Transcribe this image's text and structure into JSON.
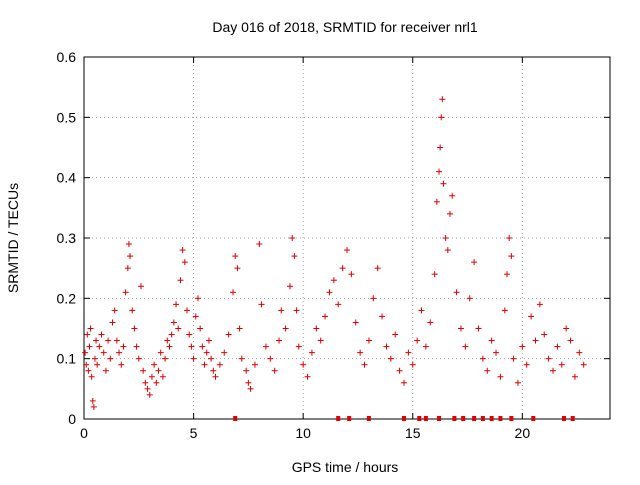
{
  "chart_data": {
    "type": "scatter",
    "title": "Day 016 of 2018, SRMTID for receiver nrl1",
    "xlabel": "GPS time / hours",
    "ylabel": "SRMTID / TECUs",
    "xlim": [
      0,
      24
    ],
    "ylim": [
      0,
      0.6
    ],
    "x_ticks": [
      "0",
      "5",
      "10",
      "15",
      "20"
    ],
    "y_ticks": [
      "0",
      "0.1",
      "0.2",
      "0.3",
      "0.4",
      "0.5",
      "0.6"
    ],
    "x_tick_values": [
      0,
      5,
      10,
      15,
      20
    ],
    "y_tick_values": [
      0,
      0.1,
      0.2,
      0.3,
      0.4,
      0.5,
      0.6
    ],
    "grid": true,
    "marker": "plus",
    "color": "#e00000",
    "series": [
      {
        "name": "SRMTID",
        "points": [
          [
            0.05,
            0.11
          ],
          [
            0.1,
            0.09
          ],
          [
            0.15,
            0.14
          ],
          [
            0.2,
            0.08
          ],
          [
            0.25,
            0.12
          ],
          [
            0.3,
            0.15
          ],
          [
            0.35,
            0.07
          ],
          [
            0.4,
            0.03
          ],
          [
            0.45,
            0.02
          ],
          [
            0.5,
            0.1
          ],
          [
            0.55,
            0.13
          ],
          [
            0.6,
            0.09
          ],
          [
            0.7,
            0.12
          ],
          [
            0.8,
            0.14
          ],
          [
            0.9,
            0.11
          ],
          [
            1.0,
            0.08
          ],
          [
            1.1,
            0.13
          ],
          [
            1.2,
            0.1
          ],
          [
            1.3,
            0.16
          ],
          [
            1.4,
            0.18
          ],
          [
            1.5,
            0.13
          ],
          [
            1.6,
            0.11
          ],
          [
            1.7,
            0.09
          ],
          [
            1.8,
            0.12
          ],
          [
            1.9,
            0.21
          ],
          [
            2.0,
            0.25
          ],
          [
            2.05,
            0.29
          ],
          [
            2.1,
            0.27
          ],
          [
            2.2,
            0.18
          ],
          [
            2.3,
            0.15
          ],
          [
            2.4,
            0.12
          ],
          [
            2.5,
            0.1
          ],
          [
            2.6,
            0.22
          ],
          [
            2.7,
            0.08
          ],
          [
            2.8,
            0.06
          ],
          [
            2.9,
            0.05
          ],
          [
            3.0,
            0.04
          ],
          [
            3.1,
            0.07
          ],
          [
            3.2,
            0.09
          ],
          [
            3.3,
            0.06
          ],
          [
            3.4,
            0.08
          ],
          [
            3.5,
            0.11
          ],
          [
            3.6,
            0.07
          ],
          [
            3.7,
            0.1
          ],
          [
            3.8,
            0.13
          ],
          [
            3.9,
            0.12
          ],
          [
            4.0,
            0.14
          ],
          [
            4.1,
            0.16
          ],
          [
            4.2,
            0.19
          ],
          [
            4.3,
            0.15
          ],
          [
            4.4,
            0.23
          ],
          [
            4.5,
            0.28
          ],
          [
            4.6,
            0.26
          ],
          [
            4.7,
            0.18
          ],
          [
            4.8,
            0.14
          ],
          [
            4.9,
            0.12
          ],
          [
            5.0,
            0.1
          ],
          [
            5.1,
            0.17
          ],
          [
            5.2,
            0.2
          ],
          [
            5.3,
            0.15
          ],
          [
            5.4,
            0.12
          ],
          [
            5.5,
            0.09
          ],
          [
            5.6,
            0.11
          ],
          [
            5.7,
            0.13
          ],
          [
            5.8,
            0.1
          ],
          [
            5.9,
            0.08
          ],
          [
            6.0,
            0.07
          ],
          [
            6.2,
            0.09
          ],
          [
            6.4,
            0.11
          ],
          [
            6.6,
            0.14
          ],
          [
            6.8,
            0.21
          ],
          [
            6.9,
            0.27
          ],
          [
            7.0,
            0.25
          ],
          [
            7.1,
            0.15
          ],
          [
            7.2,
            0.1
          ],
          [
            7.4,
            0.08
          ],
          [
            7.5,
            0.06
          ],
          [
            7.6,
            0.05
          ],
          [
            7.8,
            0.09
          ],
          [
            8.0,
            0.29
          ],
          [
            8.1,
            0.19
          ],
          [
            8.3,
            0.12
          ],
          [
            8.5,
            0.1
          ],
          [
            8.7,
            0.08
          ],
          [
            8.9,
            0.13
          ],
          [
            9.0,
            0.18
          ],
          [
            9.2,
            0.15
          ],
          [
            9.4,
            0.22
          ],
          [
            9.5,
            0.3
          ],
          [
            9.6,
            0.27
          ],
          [
            9.7,
            0.18
          ],
          [
            9.8,
            0.12
          ],
          [
            10.0,
            0.09
          ],
          [
            10.2,
            0.07
          ],
          [
            10.4,
            0.11
          ],
          [
            10.6,
            0.15
          ],
          [
            10.8,
            0.13
          ],
          [
            11.0,
            0.17
          ],
          [
            11.2,
            0.21
          ],
          [
            11.4,
            0.23
          ],
          [
            11.6,
            0.19
          ],
          [
            11.8,
            0.25
          ],
          [
            12.0,
            0.28
          ],
          [
            12.2,
            0.24
          ],
          [
            12.4,
            0.16
          ],
          [
            12.6,
            0.11
          ],
          [
            12.8,
            0.09
          ],
          [
            13.0,
            0.13
          ],
          [
            13.2,
            0.2
          ],
          [
            13.4,
            0.25
          ],
          [
            13.6,
            0.17
          ],
          [
            13.8,
            0.12
          ],
          [
            14.0,
            0.1
          ],
          [
            14.2,
            0.14
          ],
          [
            14.4,
            0.08
          ],
          [
            14.6,
            0.06
          ],
          [
            14.8,
            0.11
          ],
          [
            15.0,
            0.09
          ],
          [
            15.2,
            0.13
          ],
          [
            15.4,
            0.18
          ],
          [
            15.6,
            0.12
          ],
          [
            15.8,
            0.16
          ],
          [
            16.0,
            0.24
          ],
          [
            16.1,
            0.36
          ],
          [
            16.2,
            0.41
          ],
          [
            16.25,
            0.45
          ],
          [
            16.3,
            0.5
          ],
          [
            16.35,
            0.53
          ],
          [
            16.4,
            0.39
          ],
          [
            16.5,
            0.3
          ],
          [
            16.6,
            0.28
          ],
          [
            16.7,
            0.34
          ],
          [
            16.8,
            0.37
          ],
          [
            17.0,
            0.21
          ],
          [
            17.2,
            0.15
          ],
          [
            17.4,
            0.12
          ],
          [
            17.6,
            0.2
          ],
          [
            17.8,
            0.26
          ],
          [
            18.0,
            0.15
          ],
          [
            18.2,
            0.1
          ],
          [
            18.4,
            0.08
          ],
          [
            18.6,
            0.13
          ],
          [
            18.8,
            0.11
          ],
          [
            19.0,
            0.07
          ],
          [
            19.2,
            0.18
          ],
          [
            19.3,
            0.24
          ],
          [
            19.4,
            0.3
          ],
          [
            19.5,
            0.27
          ],
          [
            19.6,
            0.1
          ],
          [
            19.8,
            0.06
          ],
          [
            20.0,
            0.12
          ],
          [
            20.2,
            0.09
          ],
          [
            20.4,
            0.17
          ],
          [
            20.6,
            0.13
          ],
          [
            20.8,
            0.19
          ],
          [
            21.0,
            0.14
          ],
          [
            21.2,
            0.1
          ],
          [
            21.4,
            0.08
          ],
          [
            21.6,
            0.12
          ],
          [
            21.8,
            0.09
          ],
          [
            22.0,
            0.15
          ],
          [
            22.2,
            0.13
          ],
          [
            22.4,
            0.07
          ],
          [
            22.6,
            0.11
          ],
          [
            22.8,
            0.09
          ]
        ]
      }
    ],
    "zero_markers_x": [
      6.9,
      11.6,
      12.1,
      13.0,
      14.6,
      15.3,
      15.6,
      16.2,
      16.9,
      17.3,
      17.8,
      18.2,
      18.6,
      19.0,
      19.5,
      20.5,
      21.9,
      22.3
    ]
  }
}
